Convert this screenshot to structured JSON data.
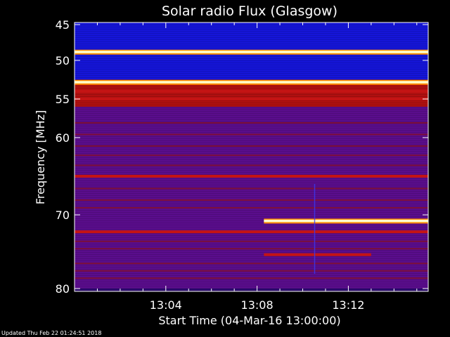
{
  "chart_data": {
    "type": "heatmap",
    "title": "Solar radio Flux (Glasgow)",
    "xlabel": "Start Time (04-Mar-16 13:00:00)",
    "ylabel": "Frequency [MHz]",
    "xlim": [
      0,
      15.5
    ],
    "ylim": [
      80,
      45
    ],
    "x_ticks": [
      4,
      8,
      12
    ],
    "x_tick_labels": [
      "13:04",
      "13:08",
      "13:12"
    ],
    "y_ticks": [
      45,
      50,
      55,
      60,
      70,
      80
    ],
    "y_tick_labels": [
      "45",
      "50",
      "55",
      "60",
      "70",
      "80"
    ],
    "background_band_color": [
      {
        "from": 45,
        "to": 52.5,
        "color": "#1515d8"
      },
      {
        "from": 52.5,
        "to": 56,
        "color": "#b01010"
      },
      {
        "from": 56,
        "to": 80,
        "color": "#5a0d8c"
      }
    ],
    "bright_lines": [
      {
        "freq": 48.8,
        "intensity": "white",
        "x_range": [
          0,
          15.5
        ]
      },
      {
        "freq": 52.8,
        "intensity": "white",
        "x_range": [
          0,
          15.5
        ]
      },
      {
        "freq": 54.0,
        "intensity": "red",
        "x_range": [
          0,
          15.5
        ]
      },
      {
        "freq": 55.0,
        "intensity": "red",
        "x_range": [
          0,
          15.5
        ]
      },
      {
        "freq": 65.0,
        "intensity": "red",
        "x_range": [
          0,
          15.5
        ]
      },
      {
        "freq": 72.3,
        "intensity": "red",
        "x_range": [
          0,
          15.5
        ]
      },
      {
        "freq": 70.8,
        "intensity": "white",
        "x_range": [
          8.3,
          15.5
        ]
      },
      {
        "freq": 75.4,
        "intensity": "red",
        "x_range": [
          8.3,
          13.0
        ]
      }
    ],
    "colors": {
      "low": "#2a0a6e",
      "mid": "#c41414",
      "high": "#ffffcc",
      "blue": "#1515d8"
    }
  },
  "footer": "Updated Thu Feb 22 01:24:51 2018"
}
